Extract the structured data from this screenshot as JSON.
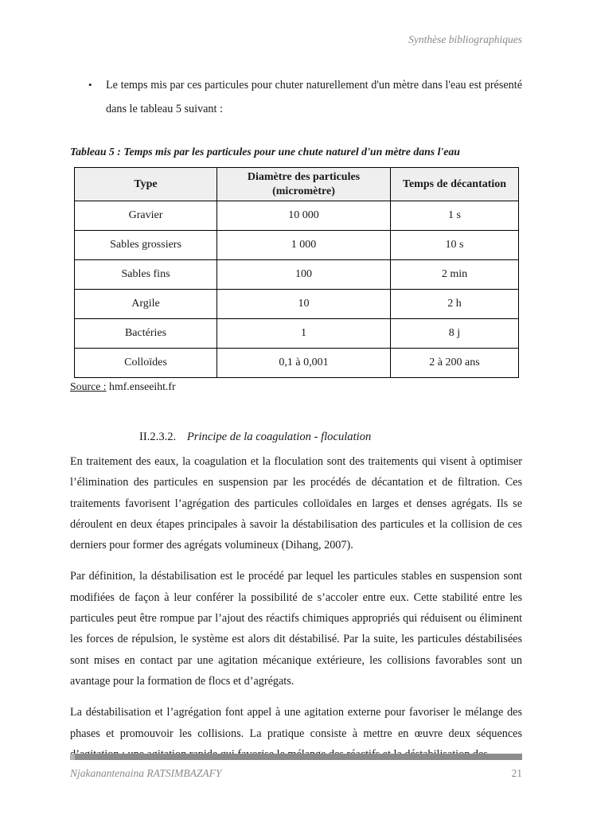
{
  "doc": {
    "running_head": "Synthèse bibliographiques",
    "bullet": {
      "glyph": "•",
      "text": "Le temps mis par ces particules pour chuter naturellement d'un mètre dans l'eau est présenté dans le tableau 5 suivant :"
    },
    "table_caption": "Tableau 5 : Temps mis par les particules pour une chute naturel d'un mètre dans l'eau",
    "table": {
      "headers": [
        "Type",
        "Diamètre des particules (micromètre)",
        "Temps de décantation"
      ],
      "rows": [
        [
          "Gravier",
          "10 000",
          "1 s"
        ],
        [
          "Sables grossiers",
          "1 000",
          "10 s"
        ],
        [
          "Sables fins",
          "100",
          "2 min"
        ],
        [
          "Argile",
          "10",
          "2 h"
        ],
        [
          "Bactéries",
          "1",
          "8 j"
        ],
        [
          "Colloïdes",
          "0,1 à 0,001",
          "2 à 200 ans"
        ]
      ]
    },
    "source": {
      "label": "Source :",
      "value": " hmf.enseeiht.fr"
    },
    "section_heading": {
      "number": "II.2.3.2.",
      "title": "Principe de la coagulation - floculation"
    },
    "paragraphs": [
      "En traitement des eaux, la coagulation et la floculation sont des traitements qui visent à optimiser l’élimination des particules en suspension par les procédés de décantation et de filtration. Ces traitements favorisent l’agrégation des particules colloïdales en larges et denses agrégats. Ils se déroulent en deux étapes principales à savoir la déstabilisation des particules et la collision de ces derniers pour former des agrégats volumineux (Dihang, 2007).",
      "Par définition, la déstabilisation est le procédé par lequel les particules stables en suspension sont modifiées de façon à leur conférer la possibilité de s’accoler entre eux. Cette stabilité entre les particules peut être rompue par l’ajout des réactifs chimiques appropriés qui réduisent ou éliminent les forces de répulsion, le système est alors dit déstabilisé. Par la suite, les particules déstabilisées sont mises en contact par une agitation mécanique extérieure, les collisions favorables sont un avantage pour la formation de flocs et d’agrégats.",
      "La déstabilisation et l’agrégation font appel à une agitation externe pour favoriser le mélange des phases et promouvoir les collisions. La pratique consiste à mettre en œuvre deux séquences d’agitation : une agitation rapide qui favorise le mélange des réactifs et la déstabilisation des"
    ],
    "footer": {
      "author": "Njakanantenaina RATSIMBAZAFY",
      "page_number": "21"
    }
  }
}
